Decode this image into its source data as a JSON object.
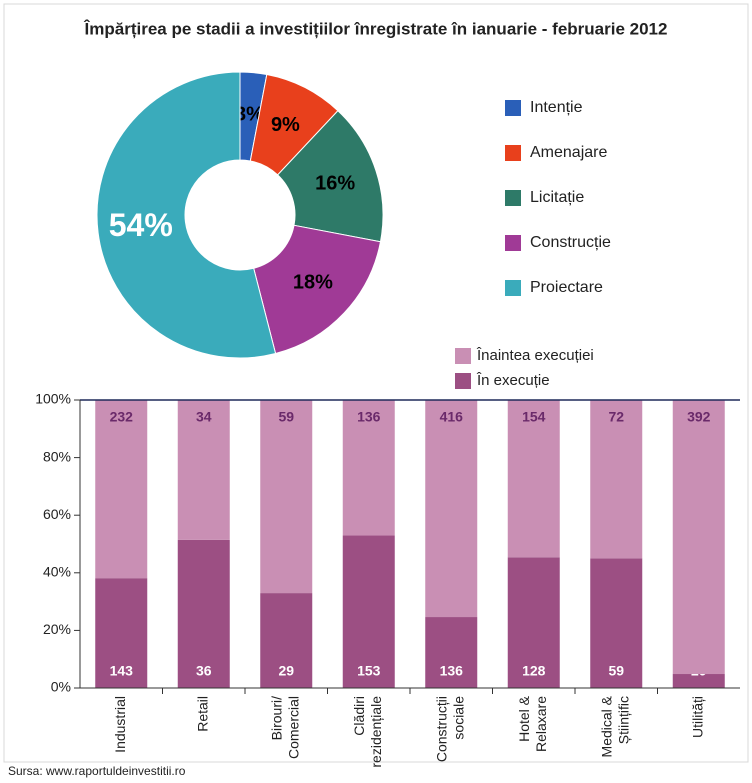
{
  "chart_data": [
    {
      "type": "donut",
      "title": "Împărțirea pe stadii a investițiilor înregistrate în ianuarie - februarie 2012",
      "categories": [
        "Intenție",
        "Amenajare",
        "Licitație",
        "Construcție",
        "Proiectare"
      ],
      "values": [
        3,
        9,
        16,
        18,
        54
      ],
      "value_labels": [
        "3%",
        "9%",
        "16%",
        "18%",
        "54%"
      ],
      "colors": [
        "#2a5fb8",
        "#e8401c",
        "#2e7a68",
        "#a03a96",
        "#3aabbb"
      ],
      "legend": "right"
    },
    {
      "type": "stacked_percent_bar",
      "categories": [
        [
          "Industrial"
        ],
        [
          "Retail"
        ],
        [
          "Birouri/",
          "Comercial"
        ],
        [
          "Clădiri",
          "rezidențiale"
        ],
        [
          "Construcții",
          "sociale"
        ],
        [
          "Hotel &",
          "Relaxare"
        ],
        [
          "Medical &",
          "Științific"
        ],
        [
          "Utilități"
        ]
      ],
      "series": [
        {
          "name": "În execuție",
          "color": "#9c4f83",
          "values": [
            143,
            36,
            29,
            153,
            136,
            128,
            59,
            20
          ]
        },
        {
          "name": "Înaintea execuției",
          "color": "#c98fb4",
          "values": [
            232,
            34,
            59,
            136,
            416,
            154,
            72,
            392
          ]
        }
      ],
      "ylim": [
        0,
        100
      ],
      "yticks": [
        {
          "value": 0,
          "label": "0%"
        },
        {
          "value": 20,
          "label": "20%"
        },
        {
          "value": 40,
          "label": "40%"
        },
        {
          "value": 60,
          "label": "60%"
        },
        {
          "value": 80,
          "label": "80%"
        },
        {
          "value": 100,
          "label": "100%"
        }
      ],
      "legend": "top-right"
    }
  ],
  "source": "Sursa: www.raportuldeinvestitii.ro"
}
